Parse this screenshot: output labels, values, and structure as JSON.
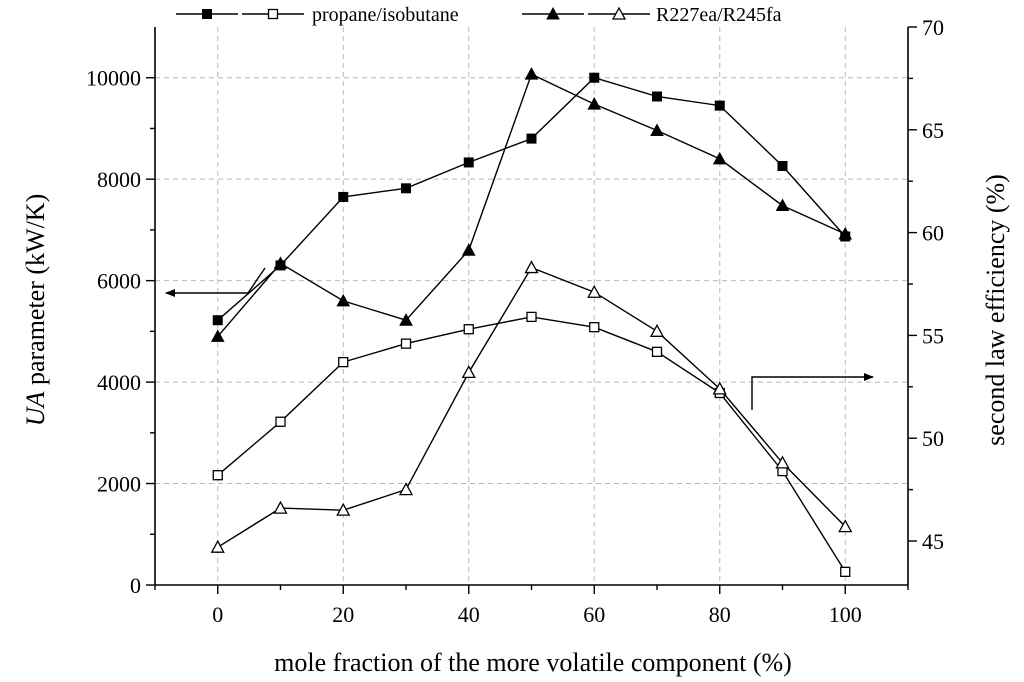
{
  "chart_data": {
    "type": "line",
    "xlabel": "mole fraction of the more volatile component (%)",
    "ylabel": "UA parameter (kW/K)",
    "ylabel_italic_part": "UA",
    "ylabel_rest": " parameter (kW/K)",
    "y2label": "second law efficiency (%)",
    "xlim": [
      -10,
      110
    ],
    "ylim": [
      0,
      11000
    ],
    "y2lim": [
      42.86,
      70
    ],
    "x_ticks": [
      0,
      20,
      40,
      60,
      80,
      100
    ],
    "y_ticks": [
      0,
      2000,
      4000,
      6000,
      8000,
      10000
    ],
    "y2_ticks": [
      45,
      50,
      55,
      60,
      65,
      70
    ],
    "grid": true,
    "legend_position": "top",
    "x": [
      0,
      10,
      20,
      30,
      40,
      50,
      60,
      70,
      80,
      90,
      100
    ],
    "series": [
      {
        "name": "propane/isobutane",
        "axis": "left",
        "marker": "filled-square",
        "values": [
          5220,
          6300,
          7650,
          7820,
          8330,
          8800,
          10000,
          9630,
          9450,
          8260,
          6870
        ]
      },
      {
        "name": "propane/isobutane",
        "axis": "right",
        "marker": "open-square",
        "values": [
          48.2,
          50.8,
          53.7,
          54.6,
          55.3,
          55.9,
          55.4,
          54.2,
          52.2,
          48.4,
          43.5
        ]
      },
      {
        "name": "R227ea/R245fa",
        "axis": "left",
        "marker": "filled-triangle",
        "values": [
          4900,
          6340,
          5600,
          5220,
          6600,
          10070,
          9480,
          8960,
          8400,
          7480,
          6920
        ]
      },
      {
        "name": "R227ea/R245fa",
        "axis": "right",
        "marker": "open-triangle",
        "values": [
          44.7,
          46.6,
          46.5,
          47.5,
          53.2,
          58.3,
          57.1,
          55.2,
          52.4,
          48.8,
          45.7
        ]
      }
    ],
    "annotations": [
      {
        "type": "arrow",
        "points_to": "left axis"
      },
      {
        "type": "arrow",
        "points_to": "right axis"
      }
    ]
  }
}
